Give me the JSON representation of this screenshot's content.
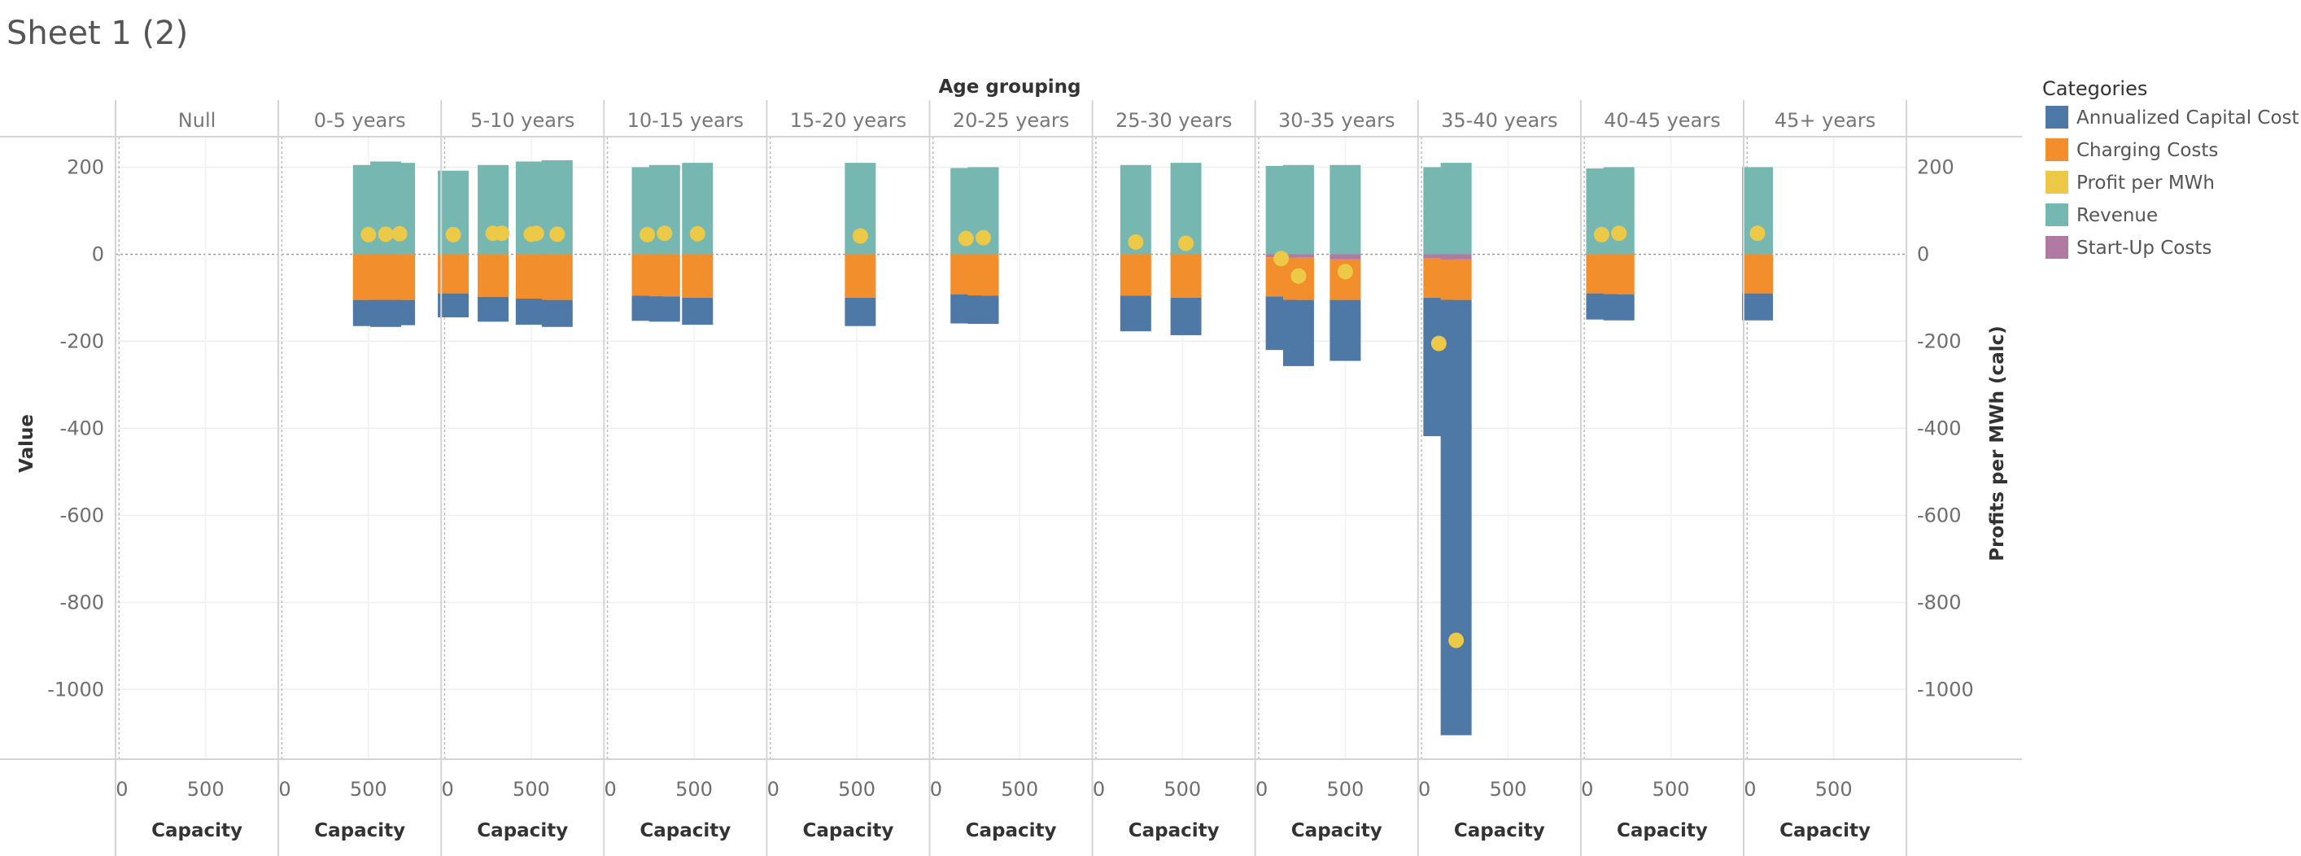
{
  "sheet": {
    "title": "Sheet 1 (2)"
  },
  "colors": {
    "annualized_capital_cost": "#4e79a7",
    "charging_costs": "#f28e2b",
    "profit_per_mwh": "#edc948",
    "revenue": "#76b7b2",
    "start_up_costs": "#b07aa1"
  },
  "legend": {
    "title": "Categories",
    "items": [
      {
        "key": "annualized_capital_cost",
        "label": "Annualized Capital Cost"
      },
      {
        "key": "charging_costs",
        "label": "Charging Costs"
      },
      {
        "key": "profit_per_mwh",
        "label": "Profit per MWh"
      },
      {
        "key": "revenue",
        "label": "Revenue"
      },
      {
        "key": "start_up_costs",
        "label": "Start-Up Costs"
      }
    ]
  },
  "chart_data": {
    "type": "bar",
    "column_header_title": "Age grouping",
    "ylabel_left": "Value",
    "ylabel_right": "Profits per MWh (calc)",
    "xlabel": "Capacity",
    "ylim": [
      -1160,
      270
    ],
    "yticks": [
      200,
      0,
      -200,
      -400,
      -600,
      -800,
      -1000
    ],
    "xlim": [
      -20,
      920
    ],
    "xticks": [
      0,
      500
    ],
    "panels": [
      {
        "label": "Null",
        "bars": []
      },
      {
        "label": "0-5 years",
        "bars": [
          {
            "x": 500,
            "revenue": 205,
            "charging": -105,
            "capital": -60,
            "startup": 0,
            "profit": 45
          },
          {
            "x": 600,
            "revenue": 213,
            "charging": -105,
            "capital": -62,
            "startup": 0,
            "profit": 46
          },
          {
            "x": 680,
            "revenue": 210,
            "charging": -105,
            "capital": -58,
            "startup": 0,
            "profit": 47
          }
        ]
      },
      {
        "label": "5-10 years",
        "bars": [
          {
            "x": 50,
            "revenue": 192,
            "charging": -90,
            "capital": -55,
            "startup": 0,
            "profit": 45
          },
          {
            "x": 280,
            "revenue": 205,
            "charging": -98,
            "capital": -57,
            "startup": 0,
            "profit": 48
          },
          {
            "x": 330,
            "revenue": 0,
            "charging": 0,
            "capital": 0,
            "startup": 0,
            "profit": 48
          },
          {
            "x": 500,
            "revenue": 213,
            "charging": -102,
            "capital": -60,
            "startup": 0,
            "profit": 46
          },
          {
            "x": 530,
            "revenue": 0,
            "charging": 0,
            "capital": 0,
            "startup": 0,
            "profit": 48
          },
          {
            "x": 650,
            "revenue": 216,
            "charging": -105,
            "capital": -62,
            "startup": 0,
            "profit": 46
          }
        ]
      },
      {
        "label": "10-15 years",
        "bars": [
          {
            "x": 230,
            "revenue": 200,
            "charging": -95,
            "capital": -58,
            "startup": 0,
            "profit": 45
          },
          {
            "x": 330,
            "revenue": 205,
            "charging": -97,
            "capital": -58,
            "startup": 0,
            "profit": 48
          },
          {
            "x": 520,
            "revenue": 210,
            "charging": -100,
            "capital": -62,
            "startup": 0,
            "profit": 47
          }
        ]
      },
      {
        "label": "15-20 years",
        "bars": [
          {
            "x": 520,
            "revenue": 210,
            "charging": -100,
            "capital": -65,
            "startup": 0,
            "profit": 42
          }
        ]
      },
      {
        "label": "20-25 years",
        "bars": [
          {
            "x": 190,
            "revenue": 198,
            "charging": -92,
            "capital": -67,
            "startup": 0,
            "profit": 36
          },
          {
            "x": 290,
            "revenue": 200,
            "charging": -95,
            "capital": -65,
            "startup": 0,
            "profit": 38
          }
        ]
      },
      {
        "label": "25-30 years",
        "bars": [
          {
            "x": 230,
            "revenue": 205,
            "charging": -95,
            "capital": -82,
            "startup": 0,
            "profit": 28
          },
          {
            "x": 520,
            "revenue": 210,
            "charging": -100,
            "capital": -86,
            "startup": 0,
            "profit": 25
          }
        ]
      },
      {
        "label": "30-35 years",
        "bars": [
          {
            "x": 130,
            "revenue": 203,
            "charging": -90,
            "capital": -123,
            "startup": -7,
            "profit": -10
          },
          {
            "x": 230,
            "revenue": 205,
            "charging": -97,
            "capital": -152,
            "startup": -8,
            "profit": -50
          },
          {
            "x": 500,
            "revenue": 205,
            "charging": -93,
            "capital": -140,
            "startup": -12,
            "profit": -40
          }
        ]
      },
      {
        "label": "35-40 years",
        "bars": [
          {
            "x": 100,
            "revenue": 200,
            "charging": -90,
            "capital": -318,
            "startup": -10,
            "profit": -205
          },
          {
            "x": 200,
            "revenue": 210,
            "charging": -93,
            "capital": -1000,
            "startup": -12,
            "profit": -887
          }
        ]
      },
      {
        "label": "40-45 years",
        "bars": [
          {
            "x": 100,
            "revenue": 197,
            "charging": -90,
            "capital": -60,
            "startup": 0,
            "profit": 45
          },
          {
            "x": 200,
            "revenue": 200,
            "charging": -92,
            "capital": -60,
            "startup": 0,
            "profit": 48
          }
        ]
      },
      {
        "label": "45+ years",
        "bars": [
          {
            "x": 60,
            "revenue": 200,
            "charging": -90,
            "capital": -62,
            "startup": 0,
            "profit": 48
          }
        ]
      }
    ]
  }
}
